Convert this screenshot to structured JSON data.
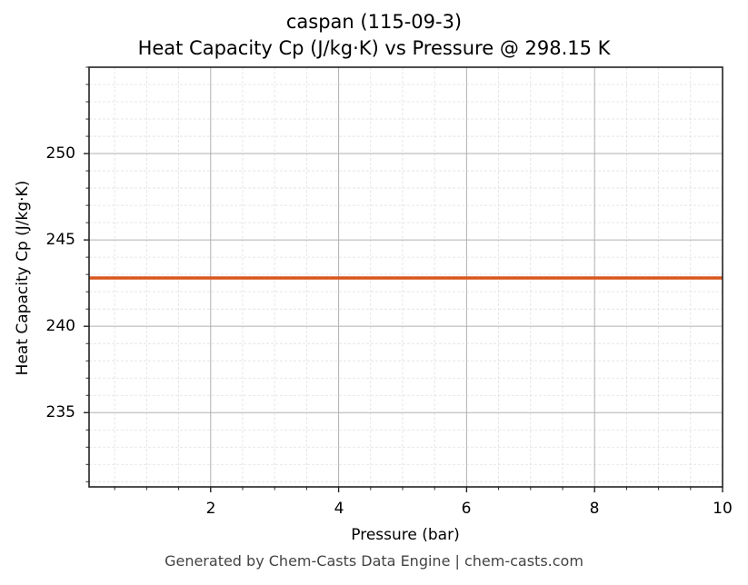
{
  "chart_data": {
    "type": "line",
    "title": "caspan (115-09-3)",
    "subtitle": "Heat Capacity Cp (J/kg·K) vs Pressure @ 298.15 K",
    "xlabel": "Pressure (bar)",
    "ylabel": "Heat Capacity Cp (J/kg·K)",
    "xlim": [
      0.1,
      10
    ],
    "ylim": [
      230.7,
      255.0
    ],
    "x_ticks": [
      2,
      4,
      6,
      8,
      10
    ],
    "y_ticks": [
      235,
      240,
      245,
      250
    ],
    "grid": true,
    "minor_grid": true,
    "series": [
      {
        "name": "Cp",
        "color": "#d9561f",
        "x": [
          0.1,
          1,
          2,
          3,
          4,
          5,
          6,
          7,
          8,
          9,
          10
        ],
        "values": [
          242.8,
          242.8,
          242.8,
          242.8,
          242.8,
          242.8,
          242.8,
          242.8,
          242.8,
          242.8,
          242.8
        ]
      }
    ]
  },
  "header": {
    "title": "caspan (115-09-3)",
    "subtitle": "Heat Capacity Cp (J/kg·K) vs Pressure @ 298.15 K"
  },
  "axes": {
    "xlabel": "Pressure (bar)",
    "ylabel": "Heat Capacity Cp (J/kg·K)",
    "x_ticks": [
      "2",
      "4",
      "6",
      "8",
      "10"
    ],
    "y_ticks": [
      "235",
      "240",
      "245",
      "250"
    ]
  },
  "footer": {
    "text": "Generated by Chem-Casts Data Engine | chem-casts.com"
  },
  "colors": {
    "line": "#d9561f",
    "major_grid": "#b0b0b0",
    "minor_grid": "#e0e0e0",
    "axes": "#222222"
  }
}
